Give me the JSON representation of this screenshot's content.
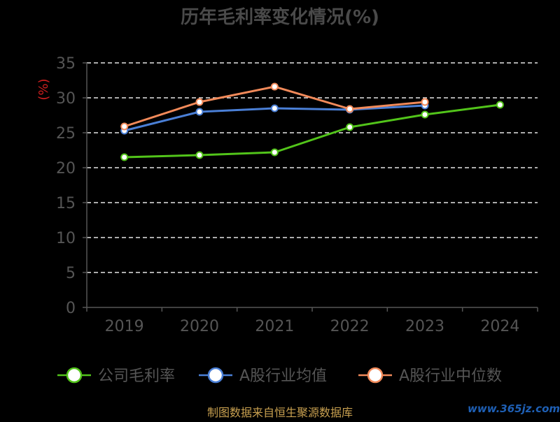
{
  "chart_data": {
    "type": "line",
    "title": "历年毛利率变化情况(%)",
    "ylabel": "(%)",
    "xlabel": "",
    "categories": [
      "2019",
      "2020",
      "2021",
      "2022",
      "2023",
      "2024"
    ],
    "yticks": [
      "0",
      "5",
      "10",
      "15",
      "20",
      "25",
      "30",
      "35"
    ],
    "ylim": [
      0,
      35
    ],
    "grid": true,
    "legend_position": "bottom",
    "series": [
      {
        "name": "公司毛利率",
        "color": "#52c41a",
        "values": [
          21.5,
          21.8,
          22.2,
          25.8,
          27.6,
          29.0
        ]
      },
      {
        "name": "A股行业均值",
        "color": "#4a7fd6",
        "values": [
          25.3,
          28.0,
          28.5,
          28.3,
          28.9,
          null
        ]
      },
      {
        "name": "A股行业中位数",
        "color": "#f28a5a",
        "values": [
          25.9,
          29.4,
          31.6,
          28.4,
          29.4,
          null
        ]
      }
    ]
  },
  "footer": {
    "source": "制图数据来自恒生聚源数据库",
    "watermark": "www.365jz.com"
  }
}
